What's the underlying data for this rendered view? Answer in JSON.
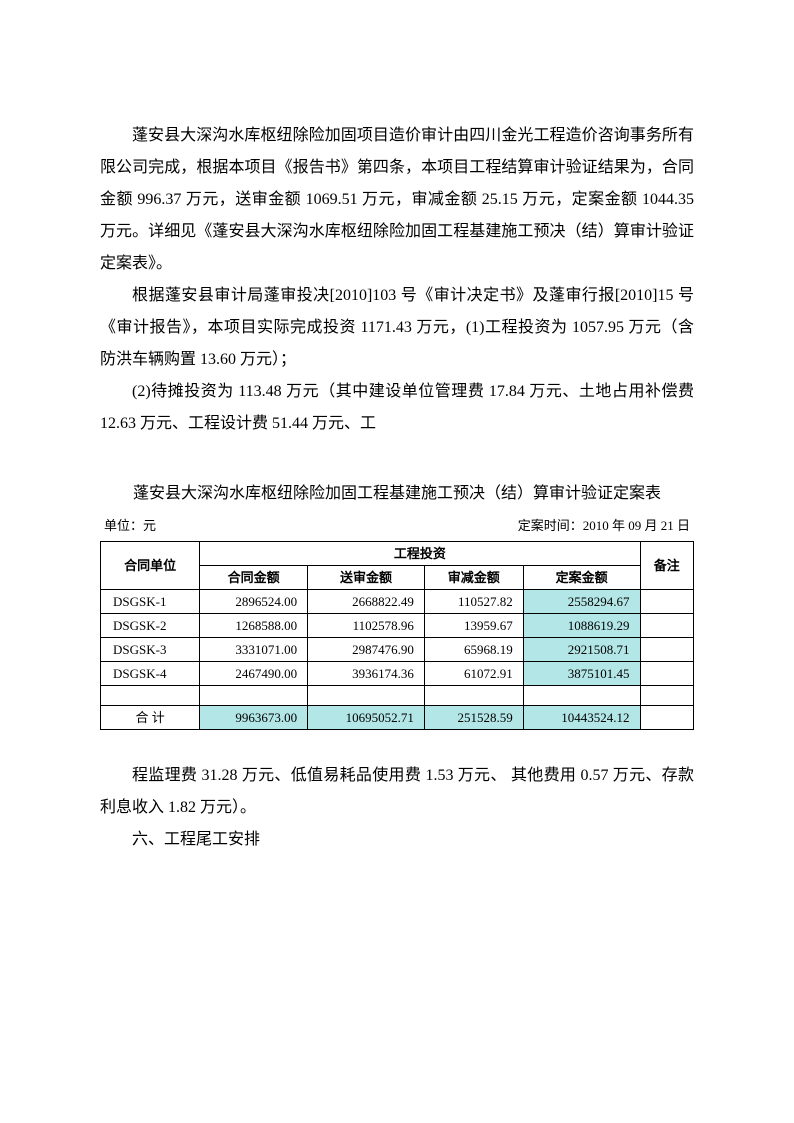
{
  "paragraphs": {
    "p1": "蓬安县大深沟水库枢纽除险加固项目造价审计由四川金光工程造价咨询事务所有限公司完成，根据本项目《报告书》第四条，本项目工程结算审计验证结果为，合同金额 996.37 万元，送审金额 1069.51 万元，审减金额 25.15 万元，定案金额 1044.35 万元。详细见《蓬安县大深沟水库枢纽除险加固工程基建施工预决（结）算审计验证定案表》。",
    "p2": "根据蓬安县审计局蓬审投决[2010]103 号《审计决定书》及蓬审行报[2010]15 号《审计报告》，本项目实际完成投资 1171.43 万元，(1)工程投资为 1057.95 万元（含防洪车辆购置 13.60 万元）；",
    "p3": "(2)待摊投资为 113.48 万元（其中建设单位管理费 17.84 万元、土地占用补偿费 12.63 万元、工程设计费 51.44 万元、工",
    "p4": "程监理费 31.28 万元、低值易耗品使用费 1.53 万元、 其他费用 0.57 万元、存款利息收入 1.82 万元）。",
    "p5": "六、工程尾工安排"
  },
  "table": {
    "title": "蓬安县大深沟水库枢纽除险加固工程基建施工预决（结）算审计验证定案表",
    "unit_label": "单位：元",
    "date_label": "定案时间：2010 年 09 月 21 日",
    "headers": {
      "unit": "合同单位",
      "investment": "工程投资",
      "remark": "备注",
      "contract": "合同金额",
      "submitted": "送审金额",
      "reduced": "审减金额",
      "final": "定案金额"
    },
    "rows": [
      {
        "unit": "DSGSK-1",
        "contract": "2896524.00",
        "submitted": "2668822.49",
        "reduced": "110527.82",
        "final": "2558294.67"
      },
      {
        "unit": "DSGSK-2",
        "contract": "1268588.00",
        "submitted": "1102578.96",
        "reduced": "13959.67",
        "final": "1088619.29"
      },
      {
        "unit": "DSGSK-3",
        "contract": "3331071.00",
        "submitted": "2987476.90",
        "reduced": "65968.19",
        "final": "2921508.71"
      },
      {
        "unit": "DSGSK-4",
        "contract": "2467490.00",
        "submitted": "3936174.36",
        "reduced": "61072.91",
        "final": "3875101.45"
      }
    ],
    "total_label": "合 计",
    "total": {
      "contract": "9963673.00",
      "submitted": "10695052.71",
      "reduced": "251528.59",
      "final": "10443524.12"
    },
    "highlight_color": "#b3e6e6"
  }
}
